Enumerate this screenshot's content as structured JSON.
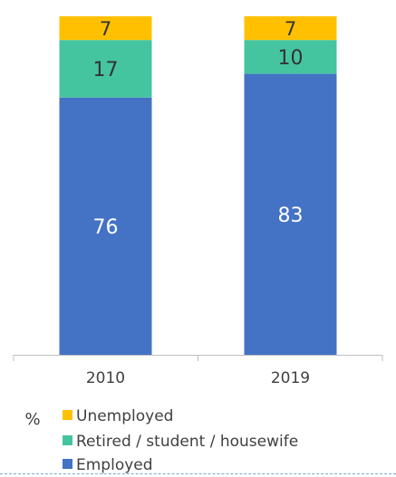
{
  "chart_data": {
    "type": "bar",
    "stacked": true,
    "categories": [
      "2010",
      "2019"
    ],
    "series": [
      {
        "name": "Employed",
        "values": [
          76,
          83
        ],
        "color": "#4472c4",
        "label_color": "#ffffff"
      },
      {
        "name": "Retired / student / housewife",
        "values": [
          17,
          10
        ],
        "color": "#45c4a0",
        "label_color": "#333333"
      },
      {
        "name": "Unemployed",
        "values": [
          7,
          7
        ],
        "color": "#ffc000",
        "label_color": "#333333"
      }
    ],
    "unit_label": "%",
    "ylim": [
      0,
      100
    ],
    "grid": false,
    "legend_position": "bottom",
    "legend_order": [
      "Unemployed",
      "Retired / student / housewife",
      "Employed"
    ]
  }
}
